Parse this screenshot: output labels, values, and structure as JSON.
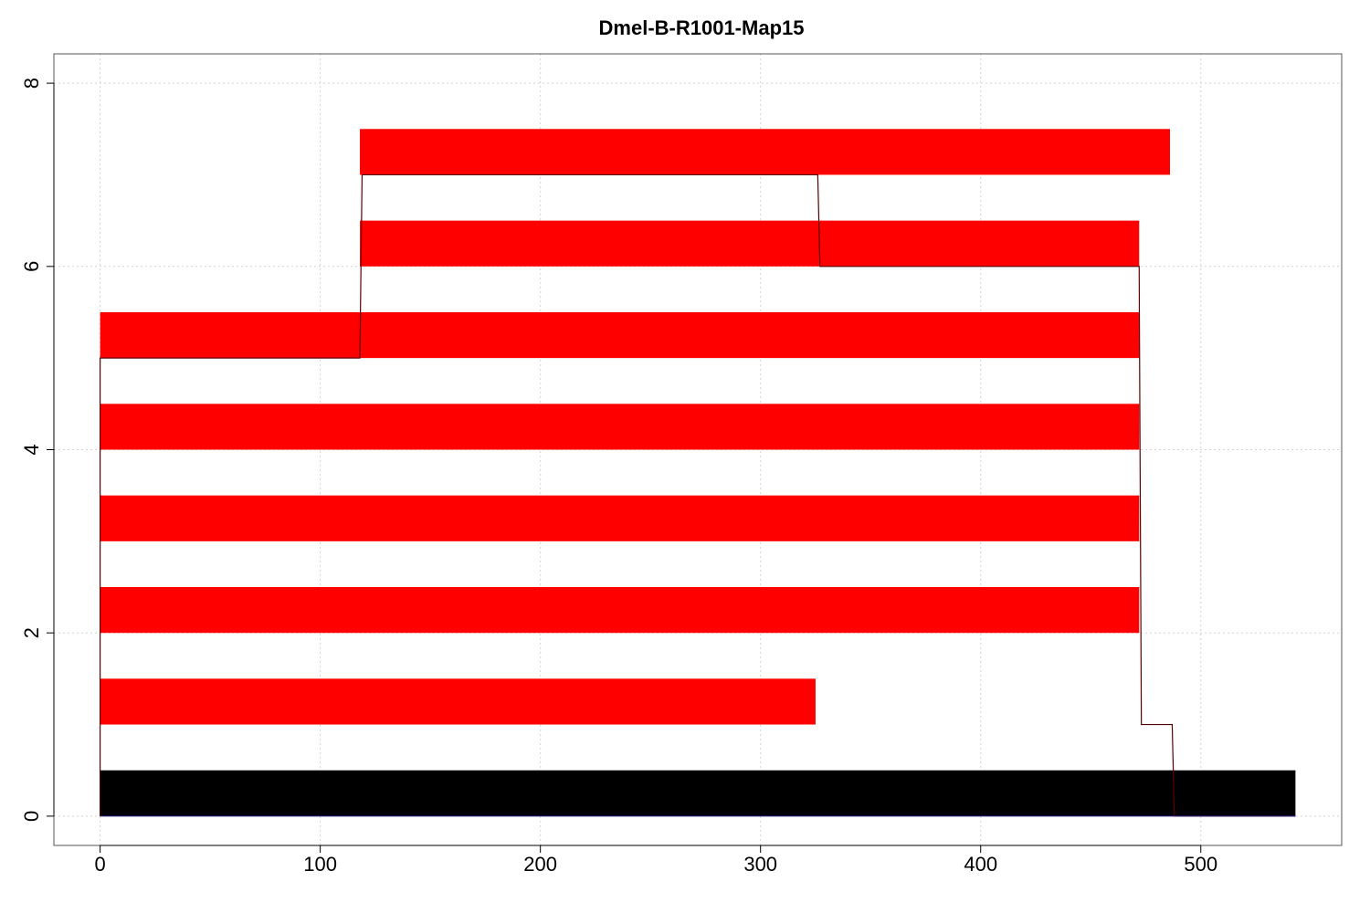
{
  "chart_data": {
    "type": "bar",
    "orientation": "horizontal",
    "title": "Dmel-B-R1001-Map15",
    "xlabel": "",
    "ylabel": "",
    "xlim": [
      -21,
      564
    ],
    "ylim": [
      -0.32,
      8.32
    ],
    "x_ticks": [
      0,
      100,
      200,
      300,
      400,
      500
    ],
    "y_ticks": [
      0,
      2,
      4,
      6,
      8
    ],
    "grid": true,
    "reference": {
      "row": 0,
      "start": 0,
      "end": 543,
      "color": "#000000"
    },
    "alignments": [
      {
        "row": 1,
        "start": 0,
        "end": 325
      },
      {
        "row": 2,
        "start": 0,
        "end": 472
      },
      {
        "row": 3,
        "start": 0,
        "end": 472
      },
      {
        "row": 4,
        "start": 0,
        "end": 472
      },
      {
        "row": 5,
        "start": 0,
        "end": 472
      },
      {
        "row": 6,
        "start": 118,
        "end": 472
      },
      {
        "row": 7,
        "start": 118,
        "end": 486
      }
    ],
    "alignment_color": "#ff0000",
    "coverage_line": {
      "color": "#5a0000",
      "points": [
        [
          0,
          0
        ],
        [
          0,
          5
        ],
        [
          118,
          5
        ],
        [
          119,
          7
        ],
        [
          326,
          7
        ],
        [
          327,
          6
        ],
        [
          472,
          6
        ],
        [
          473,
          1
        ],
        [
          487,
          1
        ],
        [
          488,
          0
        ],
        [
          543,
          0
        ]
      ]
    }
  }
}
